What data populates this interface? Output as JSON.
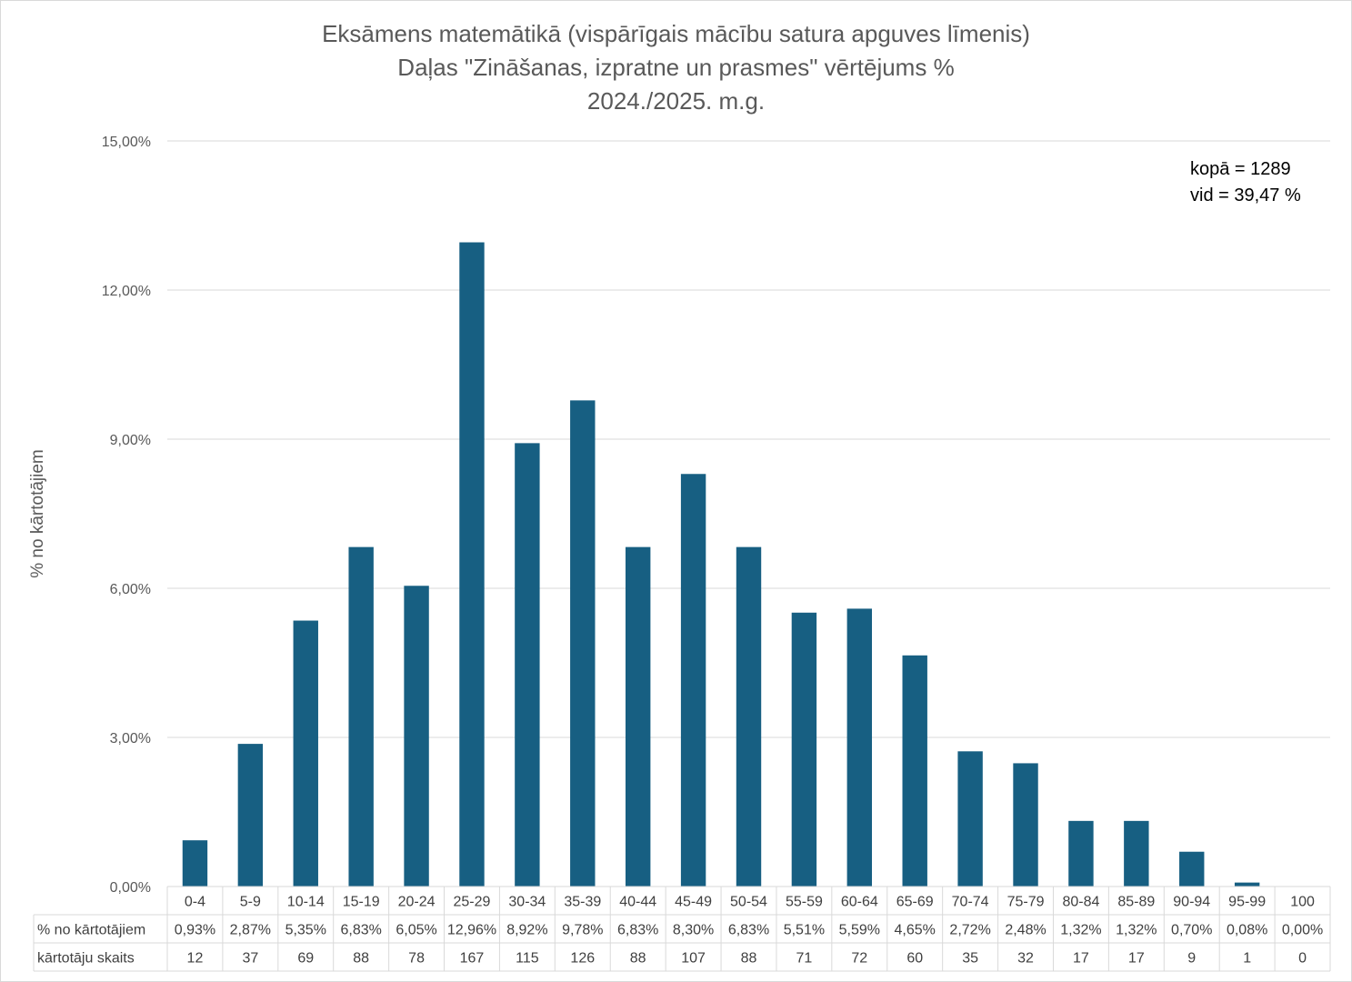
{
  "chart_data": {
    "type": "bar",
    "title": [
      "Eksāmens matemātikā (vispārīgais mācību satura apguves līmenis)",
      "Daļas \"Zināšanas, izpratne un prasmes\" vērtējums %",
      "2024./2025. m.g."
    ],
    "ylabel": "% no kārtotājiem",
    "xlabel": "",
    "ylim": [
      0,
      15
    ],
    "yticks": [
      "0,00%",
      "3,00%",
      "6,00%",
      "9,00%",
      "12,00%",
      "15,00%"
    ],
    "grid": true,
    "bar_color": "#175f82",
    "categories": [
      "0-4",
      "5-9",
      "10-14",
      "15-19",
      "20-24",
      "25-29",
      "30-34",
      "35-39",
      "40-44",
      "45-49",
      "50-54",
      "55-59",
      "60-64",
      "65-69",
      "70-74",
      "75-79",
      "80-84",
      "85-89",
      "90-94",
      "95-99",
      "100"
    ],
    "values": [
      0.93,
      2.87,
      5.35,
      6.83,
      6.05,
      12.96,
      8.92,
      9.78,
      6.83,
      8.3,
      6.83,
      5.51,
      5.59,
      4.65,
      2.72,
      2.48,
      1.32,
      1.32,
      0.7,
      0.08,
      0.0
    ],
    "table": {
      "rows": [
        {
          "label": "% no kārtotājiem",
          "cells": [
            "0,93%",
            "2,87%",
            "5,35%",
            "6,83%",
            "6,05%",
            "12,96%",
            "8,92%",
            "9,78%",
            "6,83%",
            "8,30%",
            "6,83%",
            "5,51%",
            "5,59%",
            "4,65%",
            "2,72%",
            "2,48%",
            "1,32%",
            "1,32%",
            "0,70%",
            "0,08%",
            "0,00%"
          ]
        },
        {
          "label": "kārtotāju skaits",
          "cells": [
            "12",
            "37",
            "69",
            "88",
            "78",
            "167",
            "115",
            "126",
            "88",
            "107",
            "88",
            "71",
            "72",
            "60",
            "35",
            "32",
            "17",
            "17",
            "9",
            "1",
            "0"
          ]
        }
      ]
    },
    "annotations": [
      "kopā = 1289",
      "vid = 39,47 %"
    ]
  }
}
